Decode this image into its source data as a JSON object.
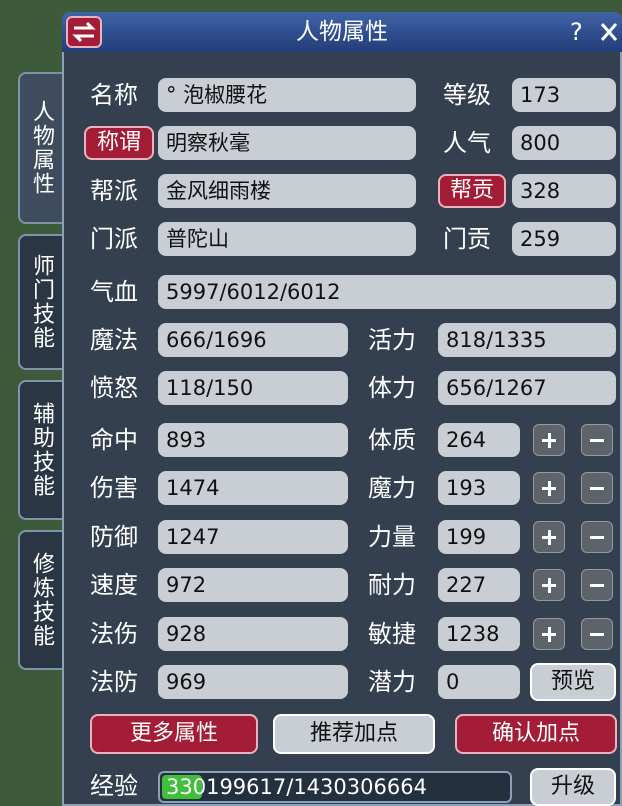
{
  "header": {
    "title": "人物属性",
    "help": "?"
  },
  "tabs": [
    "人物属性",
    "师门技能",
    "辅助技能",
    "修炼技能"
  ],
  "info": [
    {
      "label": "名称",
      "value": "° 泡椒腰花"
    },
    {
      "label": "称谓",
      "value": "明察秋毫"
    },
    {
      "label": "帮派",
      "value": "金风细雨楼"
    },
    {
      "label": "门派",
      "value": "普陀山"
    }
  ],
  "info_right": [
    {
      "label": "等级",
      "value": 173
    },
    {
      "label": "人气",
      "value": 800
    },
    {
      "label": "帮贡",
      "value": 328
    },
    {
      "label": "门贡",
      "value": 259
    }
  ],
  "health": {
    "label": "气血",
    "value": "5997/6012/6012"
  },
  "status": [
    [
      {
        "label": "魔法",
        "value": "666/1696"
      },
      {
        "label": "活力",
        "value": "818/1335"
      }
    ],
    [
      {
        "label": "愤怒",
        "value": "118/150"
      },
      {
        "label": "体力",
        "value": "656/1267"
      }
    ]
  ],
  "combat": [
    {
      "label": "命中",
      "value": 893
    },
    {
      "label": "伤害",
      "value": 1474
    },
    {
      "label": "防御",
      "value": 1247
    },
    {
      "label": "速度",
      "value": 972
    },
    {
      "label": "法伤",
      "value": 928
    },
    {
      "label": "法防",
      "value": 969
    }
  ],
  "attributes": [
    {
      "label": "体质",
      "value": 264
    },
    {
      "label": "魔力",
      "value": 193
    },
    {
      "label": "力量",
      "value": 199
    },
    {
      "label": "耐力",
      "value": 227
    },
    {
      "label": "敏捷",
      "value": 1238
    },
    {
      "label": "潜力",
      "value": 0
    }
  ],
  "buttons": {
    "preview": "预览",
    "more": "更多属性",
    "recommend": "推荐加点",
    "confirm": "确认加点",
    "upgrade": "升级"
  },
  "experience": {
    "label": "经验",
    "value": "330199617/1430306664"
  }
}
